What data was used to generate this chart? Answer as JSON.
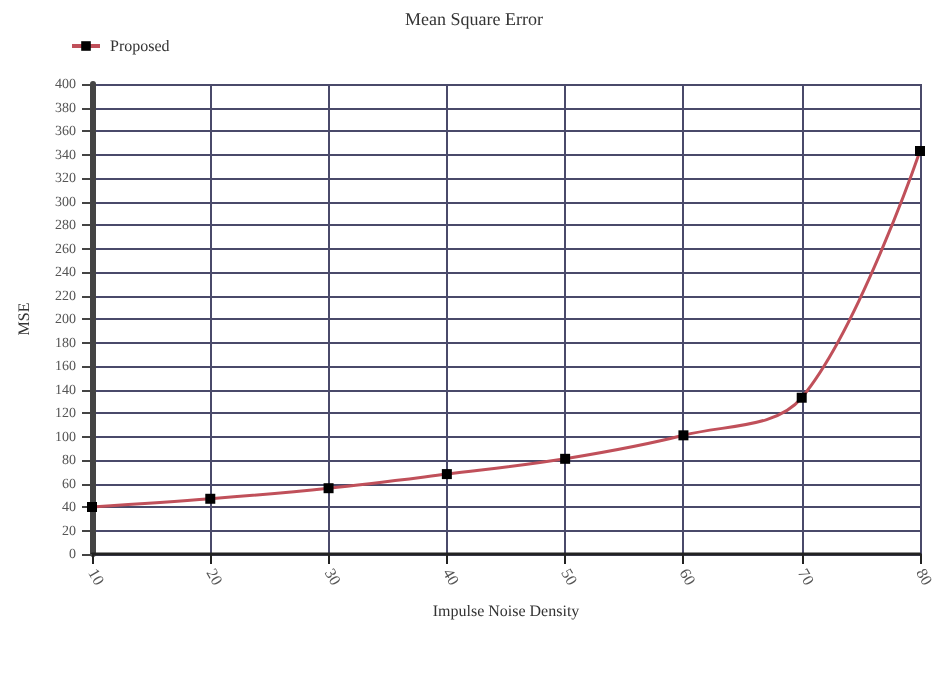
{
  "chart_data": {
    "type": "line",
    "title": "Mean Square Error",
    "xlabel": "Impulse Noise Density",
    "ylabel": "MSE",
    "x": [
      10,
      20,
      30,
      40,
      50,
      60,
      70,
      80
    ],
    "series": [
      {
        "name": "Proposed",
        "color": "#c0505a",
        "values": [
          40,
          47,
          56,
          68,
          81,
          101,
          133,
          343
        ]
      }
    ],
    "xlim": [
      10,
      80
    ],
    "xticks": [
      10,
      20,
      30,
      40,
      50,
      60,
      70,
      80
    ],
    "ylim": [
      0,
      400
    ],
    "yticks": [
      0,
      20,
      40,
      60,
      80,
      100,
      120,
      140,
      160,
      180,
      200,
      220,
      240,
      260,
      280,
      300,
      320,
      340,
      360,
      380,
      400
    ],
    "grid": true,
    "legend": "top left",
    "marker": "square",
    "line_style": "solid"
  }
}
